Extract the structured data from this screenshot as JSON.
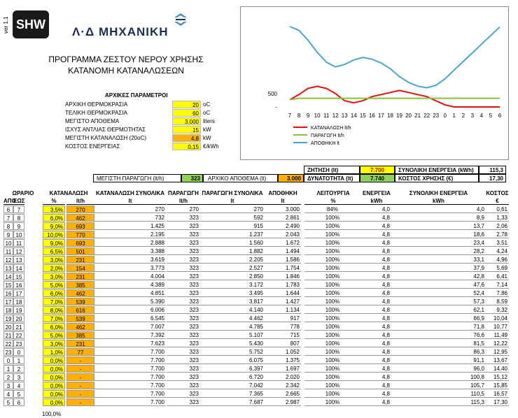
{
  "header": {
    "version": "ver 1.1",
    "badge": "SHW",
    "brand": "Λ·Δ ΜΗΧΑΝΙΚΗ",
    "title_line1": "ΠΡΟΓΡΑΜΜΑ ΖΕΣΤΟΥ ΝΕΡΟΥ ΧΡΗΣΗΣ",
    "title_line2": "ΚΑΤΑΝΟΜΗ ΚΑΤΑΝΑΛΩΣΕΩΝ"
  },
  "params": {
    "title": "ΑΡΧΙΚΕΣ ΠΑΡΑΜΕΤΡΟΙ",
    "rows": [
      {
        "label": "ΑΡΧΙΚΗ ΘΕΡΜΟΚΡΑΣΙΑ",
        "value": "20",
        "unit": "oC",
        "fill": "yel"
      },
      {
        "label": "ΤΕΛΙΚΗ ΘΕΡΜΟΚΡΑΣΙΑ",
        "value": "60",
        "unit": "oC",
        "fill": "yel"
      },
      {
        "label": "ΜΕΓΙΣΤΟ ΑΠΟΘΕΜΑ",
        "value": "3.000",
        "unit": "liters",
        "fill": "yel"
      },
      {
        "label": "ΙΣΧΥΣ ΑΝΤΛΙΑΣ ΘΕΡΜΟΤΗΤΑΣ",
        "value": "15",
        "unit": "kW",
        "fill": "yel"
      },
      {
        "label": "ΜΕΓΙΣΤΗ ΚΑΤΑΝΑΛΩΣΗ (20oC)",
        "value": "4,8",
        "unit": "kW",
        "fill": "org"
      },
      {
        "label": "ΚΟΣΤΟΣ ΕΝΕΡΓΕΙΑΣ",
        "value": "0,15",
        "unit": "€/kWh",
        "fill": "yel"
      }
    ]
  },
  "summary": {
    "max_prod_label": "ΜΕΓΙΣΤΗ ΠΑΡΑΓΩΓΗ (lt/h)",
    "max_prod_value": "323",
    "init_stock_label": "ΑΡΧΙΚΟ ΑΠΟΘΕΜΑ (lt)",
    "init_stock_value": "3.000",
    "demand_label": "ΖΗΤΗΣΗ (lt)",
    "demand_value": "7.700",
    "capacity_label": "ΔΥΝΑΤΟΤΗΤΑ (lt)",
    "capacity_value": "7.740",
    "total_energy_label": "ΣΥΝΟΛΙΚΗ ΕΝΕΡΓΕΙΑ (kWh)",
    "total_energy_value": "115,3",
    "total_cost_label": "ΚΟΣΤΟΣ ΧΡΗΣΗΣ (€)",
    "total_cost_value": "17,30"
  },
  "table": {
    "headers_top": [
      "ΩΡΑΡΙΟ",
      "ΚΑΤΑΝΑΛΩΣΗ",
      "ΚΑΤΑΝΑΛΩΣΗ ΣΥΝΟΛΙΚΑ",
      "ΠΑΡΑΓΩΓΗ",
      "ΠΑΡΑΓΩΓΗ ΣΥΝΟΛΙΚΑ",
      "ΑΠΟΘΗΚΗ",
      "ΛΕΙΤΟΥΡΓΙΑ",
      "ΕΝΕΡΓΕΙΑ",
      "ΣΥΝΟΛΙΚΗ ΕΝΕΡΓΕΙΑ",
      "ΚΟΣΤΟΣ"
    ],
    "headers_sub": [
      "ΑΠΟ",
      "ΕΩΣ",
      "%",
      "lt/h",
      "lt",
      "lt/h",
      "lt",
      "lt",
      "%",
      "kWh",
      "kWh",
      "€"
    ],
    "rows": [
      [
        "6",
        "7",
        "3,5%",
        "270",
        "270",
        "270",
        "270",
        "3.000",
        "84%",
        "4,0",
        "4,0",
        "0,61"
      ],
      [
        "7",
        "8",
        "6,0%",
        "462",
        "732",
        "323",
        "592",
        "2.861",
        "100%",
        "4,8",
        "8,9",
        "1,33"
      ],
      [
        "8",
        "9",
        "9,0%",
        "693",
        "1.425",
        "323",
        "915",
        "2.490",
        "100%",
        "4,8",
        "13,7",
        "2,06"
      ],
      [
        "9",
        "10",
        "10,0%",
        "770",
        "2.195",
        "323",
        "1.237",
        "2.043",
        "100%",
        "4,8",
        "18,6",
        "2,78"
      ],
      [
        "10",
        "11",
        "9,0%",
        "693",
        "2.888",
        "323",
        "1.560",
        "1.672",
        "100%",
        "4,8",
        "23,4",
        "3,51"
      ],
      [
        "11",
        "12",
        "6,5%",
        "501",
        "3.388",
        "323",
        "1.882",
        "1.494",
        "100%",
        "4,8",
        "28,2",
        "4,24"
      ],
      [
        "12",
        "13",
        "3,0%",
        "231",
        "3.619",
        "323",
        "2.205",
        "1.586",
        "100%",
        "4,8",
        "33,1",
        "4,96"
      ],
      [
        "13",
        "14",
        "2,0%",
        "154",
        "3.773",
        "323",
        "2.527",
        "1.754",
        "100%",
        "4,8",
        "37,9",
        "5,69"
      ],
      [
        "14",
        "15",
        "3,0%",
        "231",
        "4.004",
        "323",
        "2.850",
        "1.846",
        "100%",
        "4,8",
        "42,8",
        "6,41"
      ],
      [
        "15",
        "16",
        "5,0%",
        "385",
        "4.389",
        "323",
        "3.172",
        "1.783",
        "100%",
        "4,8",
        "47,6",
        "7,14"
      ],
      [
        "16",
        "17",
        "6,0%",
        "462",
        "4.851",
        "323",
        "3.495",
        "1.644",
        "100%",
        "4,8",
        "52,4",
        "7,86"
      ],
      [
        "17",
        "18",
        "7,0%",
        "539",
        "5.390",
        "323",
        "3.817",
        "1.427",
        "100%",
        "4,8",
        "57,3",
        "8,59"
      ],
      [
        "18",
        "19",
        "8,0%",
        "616",
        "6.006",
        "323",
        "4.140",
        "1.134",
        "100%",
        "4,8",
        "62,1",
        "9,32"
      ],
      [
        "19",
        "20",
        "7,0%",
        "539",
        "6.545",
        "323",
        "4.462",
        "917",
        "100%",
        "4,8",
        "66,9",
        "10,04"
      ],
      [
        "20",
        "21",
        "6,0%",
        "462",
        "7.007",
        "323",
        "4.785",
        "778",
        "100%",
        "4,8",
        "71,8",
        "10,77"
      ],
      [
        "21",
        "22",
        "5,0%",
        "385",
        "7.392",
        "323",
        "5.107",
        "715",
        "100%",
        "4,8",
        "76,6",
        "11,49"
      ],
      [
        "22",
        "23",
        "3,0%",
        "231",
        "7.623",
        "323",
        "5.430",
        "807",
        "100%",
        "4,8",
        "81,5",
        "12,22"
      ],
      [
        "23",
        "0",
        "1,0%",
        "77",
        "7.700",
        "323",
        "5.752",
        "1.052",
        "100%",
        "4,8",
        "86,3",
        "12,95"
      ],
      [
        "0",
        "1",
        "0,0%",
        "-",
        "7.700",
        "323",
        "6.075",
        "1.375",
        "100%",
        "4,8",
        "91,1",
        "13,67"
      ],
      [
        "1",
        "2",
        "0,0%",
        "-",
        "7.700",
        "323",
        "6.397",
        "1.697",
        "100%",
        "4,8",
        "96,0",
        "14,40"
      ],
      [
        "2",
        "3",
        "0,0%",
        "-",
        "7.700",
        "323",
        "6.720",
        "2.020",
        "100%",
        "4,8",
        "100,8",
        "15,12"
      ],
      [
        "3",
        "4",
        "0,0%",
        "-",
        "7.700",
        "323",
        "7.042",
        "2.342",
        "100%",
        "4,8",
        "105,7",
        "15,85"
      ],
      [
        "4",
        "5",
        "0,0%",
        "-",
        "7.700",
        "323",
        "7.365",
        "2.665",
        "100%",
        "4,8",
        "110,5",
        "16,57"
      ],
      [
        "5",
        "6",
        "0,0%",
        "-",
        "7.700",
        "323",
        "7.687",
        "2.987",
        "100%",
        "4,8",
        "115,3",
        "17,30"
      ]
    ],
    "total_percent": "100,0%"
  },
  "chart_data": {
    "type": "line",
    "x": [
      "7",
      "8",
      "9",
      "10",
      "11",
      "12",
      "13",
      "14",
      "15",
      "16",
      "17",
      "18",
      "19",
      "20",
      "21",
      "22",
      "23",
      "0",
      "1",
      "2",
      "3",
      "4",
      "5",
      "6"
    ],
    "ytick": "500",
    "ytick_value": 500,
    "ylim": [
      0,
      3000
    ],
    "series": [
      {
        "name": "ΚΑΤΑΝΑΛΩΣΗ lt/h",
        "color": "#e01010",
        "values": [
          270,
          462,
          693,
          770,
          693,
          501,
          231,
          154,
          231,
          385,
          462,
          539,
          616,
          539,
          462,
          385,
          231,
          77,
          0,
          0,
          0,
          0,
          0,
          0
        ]
      },
      {
        "name": "ΠΑΡΑΓΩΓΗ lt/h",
        "color": "#8cbf3f",
        "values": [
          270,
          323,
          323,
          323,
          323,
          323,
          323,
          323,
          323,
          323,
          323,
          323,
          323,
          323,
          323,
          323,
          323,
          323,
          323,
          323,
          323,
          323,
          323,
          323
        ]
      },
      {
        "name": "ΑΠΟΘΗΚΗ lt",
        "color": "#4aa6c8",
        "values": [
          3000,
          2861,
          2490,
          2043,
          1672,
          1494,
          1586,
          1754,
          1846,
          1783,
          1644,
          1427,
          1134,
          917,
          778,
          715,
          807,
          1052,
          1375,
          1697,
          2020,
          2342,
          2665,
          2987
        ]
      }
    ]
  }
}
